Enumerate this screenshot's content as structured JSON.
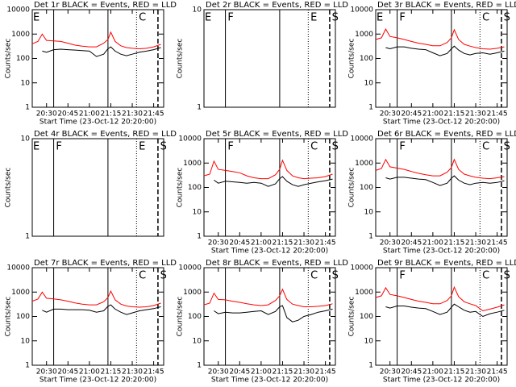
{
  "chart_data": [
    {
      "type": "line",
      "title": "Det 1r BLACK = Events, RED = LLD",
      "ylabel": "Counts/sec",
      "xlabel": "Start Time (23-Oct-12 20:20:00)",
      "xlim": [
        "20:20",
        "21:52"
      ],
      "xticks": [
        "20:30",
        "20:45",
        "21:00",
        "21:15",
        "21:30",
        "21:45"
      ],
      "ylim": [
        1,
        10000
      ],
      "yticks": [
        1,
        10,
        100,
        1000,
        10000
      ],
      "log_y": true,
      "x": [
        "20:20",
        "20:24",
        "20:27",
        "20:30",
        "20:35",
        "20:40",
        "20:45",
        "20:50",
        "20:55",
        "21:00",
        "21:05",
        "21:10",
        "21:13",
        "21:15",
        "21:18",
        "21:22",
        "21:26",
        "21:30",
        "21:35",
        "21:40",
        "21:45",
        "21:50"
      ],
      "series": [
        {
          "name": "RED = LLD",
          "color": "#ff0000",
          "values": [
            400,
            500,
            1000,
            550,
            520,
            500,
            420,
            350,
            320,
            300,
            300,
            420,
            600,
            1200,
            500,
            330,
            280,
            260,
            250,
            260,
            300,
            380
          ]
        },
        {
          "name": "BLACK = Events",
          "color": "#000000",
          "values": [
            null,
            null,
            200,
            180,
            230,
            240,
            230,
            220,
            210,
            200,
            120,
            150,
            250,
            300,
            200,
            150,
            130,
            150,
            180,
            200,
            230,
            280
          ]
        }
      ],
      "vlines": [
        {
          "x": "20:35",
          "style": "solid"
        },
        {
          "x": "21:13",
          "style": "solid"
        },
        {
          "x": "21:33",
          "style": "dotted"
        },
        {
          "x": "21:48",
          "style": "dashed"
        }
      ],
      "annotations": [
        {
          "text": "E",
          "x": "20:20"
        },
        {
          "text": "C",
          "x": "21:34"
        }
      ]
    },
    {
      "type": "line",
      "title": "Det 2r BLACK = Events, RED = LLD",
      "ylabel": "Counts/sec",
      "xlim": [
        "20:20",
        "21:52"
      ],
      "ylim": [
        1,
        10
      ],
      "yticks": [
        1,
        10
      ],
      "log_y": true,
      "vlines": [
        {
          "x": "20:35",
          "style": "solid"
        },
        {
          "x": "21:13",
          "style": "solid"
        },
        {
          "x": "21:33",
          "style": "dotted"
        },
        {
          "x": "21:48",
          "style": "dashed"
        }
      ],
      "annotations": [
        {
          "text": "E",
          "x": "20:20"
        },
        {
          "text": "F",
          "x": "20:36"
        },
        {
          "text": "E",
          "x": "21:34"
        },
        {
          "text": "S",
          "x": "21:49"
        }
      ]
    },
    {
      "type": "line",
      "title": "Det 3r BLACK = Events, RED = LLD",
      "ylabel": "Counts/sec",
      "xlabel": "Start Time (23-Oct-12 20:20:00)",
      "xlim": [
        "20:20",
        "21:52"
      ],
      "xticks": [
        "20:30",
        "20:45",
        "21:00",
        "21:15",
        "21:30",
        "21:45"
      ],
      "ylim": [
        1,
        10000
      ],
      "yticks": [
        1,
        10,
        100,
        1000,
        10000
      ],
      "log_y": true,
      "x": [
        "20:20",
        "20:24",
        "20:27",
        "20:30",
        "20:35",
        "20:40",
        "20:45",
        "20:50",
        "20:55",
        "21:00",
        "21:05",
        "21:10",
        "21:13",
        "21:15",
        "21:18",
        "21:22",
        "21:26",
        "21:30",
        "21:35",
        "21:40",
        "21:45",
        "21:50"
      ],
      "series": [
        {
          "name": "RED = LLD",
          "color": "#ff0000",
          "values": [
            600,
            700,
            1600,
            800,
            700,
            600,
            500,
            420,
            380,
            330,
            330,
            450,
            700,
            1500,
            600,
            380,
            320,
            280,
            250,
            240,
            260,
            300
          ]
        },
        {
          "name": "BLACK = Events",
          "color": "#000000",
          "values": [
            null,
            null,
            280,
            250,
            300,
            300,
            260,
            240,
            230,
            170,
            130,
            160,
            250,
            320,
            220,
            160,
            140,
            160,
            170,
            150,
            170,
            200
          ]
        }
      ],
      "vlines": [
        {
          "x": "20:35",
          "style": "solid"
        },
        {
          "x": "21:13",
          "style": "solid"
        },
        {
          "x": "21:33",
          "style": "dotted"
        },
        {
          "x": "21:48",
          "style": "dashed"
        }
      ],
      "annotations": [
        {
          "text": "E",
          "x": "20:20"
        },
        {
          "text": "F",
          "x": "20:36"
        },
        {
          "text": "C",
          "x": "21:34"
        },
        {
          "text": "S",
          "x": "21:49"
        }
      ]
    },
    {
      "type": "line",
      "title": "Det 4r BLACK = Events, RED = LLD",
      "ylabel": "Counts/sec",
      "xlim": [
        "20:20",
        "21:52"
      ],
      "ylim": [
        1,
        10
      ],
      "yticks": [
        1,
        10
      ],
      "log_y": true,
      "vlines": [
        {
          "x": "20:35",
          "style": "solid"
        },
        {
          "x": "21:13",
          "style": "solid"
        },
        {
          "x": "21:33",
          "style": "dotted"
        },
        {
          "x": "21:48",
          "style": "dashed"
        }
      ],
      "annotations": [
        {
          "text": "E",
          "x": "20:20"
        },
        {
          "text": "F",
          "x": "20:36"
        },
        {
          "text": "E",
          "x": "21:34"
        },
        {
          "text": "S",
          "x": "21:49"
        }
      ]
    },
    {
      "type": "line",
      "title": "Det 5r BLACK = Events, RED = LLD",
      "ylabel": "Counts/sec",
      "xlabel": "Start Time (23-Oct-12 20:20:00)",
      "xlim": [
        "20:20",
        "21:52"
      ],
      "xticks": [
        "20:30",
        "20:45",
        "21:00",
        "21:15",
        "21:30",
        "21:45"
      ],
      "ylim": [
        1,
        10000
      ],
      "yticks": [
        1,
        10,
        100,
        1000,
        10000
      ],
      "log_y": true,
      "x": [
        "20:20",
        "20:24",
        "20:27",
        "20:30",
        "20:35",
        "20:40",
        "20:45",
        "20:50",
        "20:55",
        "21:00",
        "21:05",
        "21:10",
        "21:13",
        "21:15",
        "21:18",
        "21:22",
        "21:26",
        "21:30",
        "21:35",
        "21:40",
        "21:45",
        "21:50"
      ],
      "series": [
        {
          "name": "RED = LLD",
          "color": "#ff0000",
          "values": [
            300,
            350,
            1200,
            550,
            500,
            450,
            400,
            300,
            250,
            230,
            230,
            330,
            550,
            1300,
            500,
            300,
            250,
            230,
            240,
            250,
            280,
            350
          ]
        },
        {
          "name": "BLACK = Events",
          "color": "#000000",
          "values": [
            null,
            null,
            200,
            150,
            180,
            170,
            160,
            150,
            160,
            150,
            110,
            140,
            230,
            280,
            180,
            130,
            110,
            130,
            150,
            170,
            190,
            220
          ]
        }
      ],
      "vlines": [
        {
          "x": "20:35",
          "style": "solid"
        },
        {
          "x": "21:13",
          "style": "solid"
        },
        {
          "x": "21:33",
          "style": "dotted"
        },
        {
          "x": "21:48",
          "style": "dashed"
        }
      ],
      "annotations": [
        {
          "text": "F",
          "x": "20:36"
        },
        {
          "text": "C",
          "x": "21:34"
        },
        {
          "text": "S",
          "x": "21:49"
        }
      ]
    },
    {
      "type": "line",
      "title": "Det 6r BLACK = Events, RED = LLD",
      "ylabel": "Counts/sec",
      "xlabel": "Start Time (23-Oct-12 20:20:00)",
      "xlim": [
        "20:20",
        "21:52"
      ],
      "xticks": [
        "20:30",
        "20:45",
        "21:00",
        "21:15",
        "21:30",
        "21:45"
      ],
      "ylim": [
        1,
        10000
      ],
      "yticks": [
        1,
        10,
        100,
        1000,
        10000
      ],
      "log_y": true,
      "x": [
        "20:20",
        "20:24",
        "20:27",
        "20:30",
        "20:35",
        "20:40",
        "20:45",
        "20:50",
        "20:55",
        "21:00",
        "21:05",
        "21:10",
        "21:13",
        "21:15",
        "21:18",
        "21:22",
        "21:26",
        "21:30",
        "21:35",
        "21:40",
        "21:45",
        "21:50"
      ],
      "series": [
        {
          "name": "RED = LLD",
          "color": "#ff0000",
          "values": [
            500,
            600,
            1400,
            700,
            620,
            550,
            450,
            380,
            330,
            300,
            300,
            420,
            650,
            1400,
            550,
            350,
            300,
            260,
            240,
            230,
            250,
            280
          ]
        },
        {
          "name": "BLACK = Events",
          "color": "#000000",
          "values": [
            null,
            null,
            250,
            220,
            260,
            260,
            240,
            220,
            210,
            160,
            120,
            150,
            240,
            300,
            200,
            150,
            130,
            150,
            160,
            150,
            160,
            190
          ]
        }
      ],
      "vlines": [
        {
          "x": "20:35",
          "style": "solid"
        },
        {
          "x": "21:13",
          "style": "solid"
        },
        {
          "x": "21:33",
          "style": "dotted"
        },
        {
          "x": "21:48",
          "style": "dashed"
        }
      ],
      "annotations": [
        {
          "text": "F",
          "x": "20:36"
        },
        {
          "text": "C",
          "x": "21:34"
        },
        {
          "text": "S",
          "x": "21:49"
        }
      ]
    },
    {
      "type": "line",
      "title": "Det 7r BLACK = Events, RED = LLD",
      "ylabel": "Counts/sec",
      "xlabel": "Start Time (23-Oct-12 20:20:00)",
      "xlim": [
        "20:20",
        "21:52"
      ],
      "xticks": [
        "20:30",
        "20:45",
        "21:00",
        "21:15",
        "21:30",
        "21:45"
      ],
      "ylim": [
        1,
        10000
      ],
      "yticks": [
        1,
        10,
        100,
        1000,
        10000
      ],
      "log_y": true,
      "x": [
        "20:20",
        "20:24",
        "20:27",
        "20:30",
        "20:35",
        "20:40",
        "20:45",
        "20:50",
        "20:55",
        "21:00",
        "21:05",
        "21:10",
        "21:13",
        "21:15",
        "21:18",
        "21:22",
        "21:26",
        "21:30",
        "21:35",
        "21:40",
        "21:45",
        "21:50"
      ],
      "series": [
        {
          "name": "RED = LLD",
          "color": "#ff0000",
          "values": [
            420,
            520,
            1000,
            560,
            520,
            480,
            420,
            360,
            320,
            300,
            300,
            400,
            600,
            1100,
            480,
            320,
            270,
            250,
            240,
            250,
            280,
            350
          ]
        },
        {
          "name": "BLACK = Events",
          "color": "#000000",
          "values": [
            null,
            null,
            180,
            150,
            200,
            200,
            190,
            190,
            190,
            180,
            150,
            170,
            260,
            300,
            200,
            150,
            120,
            140,
            170,
            190,
            210,
            250
          ]
        }
      ],
      "vlines": [
        {
          "x": "20:35",
          "style": "solid"
        },
        {
          "x": "21:13",
          "style": "solid"
        },
        {
          "x": "21:33",
          "style": "dotted"
        },
        {
          "x": "21:48",
          "style": "dashed"
        }
      ],
      "annotations": [
        {
          "text": "C",
          "x": "21:34"
        },
        {
          "text": "S",
          "x": "21:49"
        }
      ]
    },
    {
      "type": "line",
      "title": "Det 8r BLACK = Events, RED = LLD",
      "ylabel": "Counts/sec",
      "xlabel": "Start Time (23-Oct-12 20:20:00)",
      "xlim": [
        "20:20",
        "21:52"
      ],
      "xticks": [
        "20:30",
        "20:45",
        "21:00",
        "21:15",
        "21:30",
        "21:45"
      ],
      "ylim": [
        1,
        10000
      ],
      "yticks": [
        1,
        10,
        100,
        1000,
        10000
      ],
      "log_y": true,
      "x": [
        "20:20",
        "20:24",
        "20:27",
        "20:30",
        "20:35",
        "20:40",
        "20:45",
        "20:50",
        "20:55",
        "21:00",
        "21:05",
        "21:10",
        "21:13",
        "21:15",
        "21:18",
        "21:22",
        "21:26",
        "21:30",
        "21:35",
        "21:40",
        "21:45",
        "21:50"
      ],
      "series": [
        {
          "name": "RED = LLD",
          "color": "#ff0000",
          "values": [
            300,
            350,
            900,
            500,
            480,
            420,
            380,
            330,
            300,
            280,
            300,
            450,
            700,
            1300,
            500,
            320,
            280,
            250,
            250,
            260,
            280,
            330
          ]
        },
        {
          "name": "BLACK = Events",
          "color": "#000000",
          "values": [
            null,
            null,
            170,
            130,
            150,
            140,
            140,
            150,
            160,
            170,
            120,
            160,
            250,
            280,
            90,
            60,
            70,
            100,
            120,
            150,
            170,
            200
          ]
        }
      ],
      "vlines": [
        {
          "x": "20:35",
          "style": "solid"
        },
        {
          "x": "21:13",
          "style": "solid"
        },
        {
          "x": "21:33",
          "style": "dotted"
        },
        {
          "x": "21:48",
          "style": "dashed"
        }
      ],
      "annotations": [
        {
          "text": "C",
          "x": "21:34"
        },
        {
          "text": "S",
          "x": "21:49"
        }
      ]
    },
    {
      "type": "line",
      "title": "Det 9r BLACK = Events, RED = LLD",
      "ylabel": "Counts/sec",
      "xlabel": "Start Time (23-Oct-12 20:20:00)",
      "xlim": [
        "20:20",
        "21:52"
      ],
      "xticks": [
        "20:30",
        "20:45",
        "21:00",
        "21:15",
        "21:30",
        "21:45"
      ],
      "ylim": [
        1,
        10000
      ],
      "yticks": [
        1,
        10,
        100,
        1000,
        10000
      ],
      "log_y": true,
      "x": [
        "20:20",
        "20:24",
        "20:27",
        "20:30",
        "20:35",
        "20:40",
        "20:45",
        "20:50",
        "20:55",
        "21:00",
        "21:05",
        "21:10",
        "21:13",
        "21:15",
        "21:18",
        "21:22",
        "21:26",
        "21:30",
        "21:35",
        "21:40",
        "21:45",
        "21:50"
      ],
      "series": [
        {
          "name": "RED = LLD",
          "color": "#ff0000",
          "values": [
            600,
            700,
            1500,
            800,
            700,
            600,
            500,
            420,
            380,
            330,
            330,
            450,
            700,
            1600,
            650,
            400,
            330,
            280,
            170,
            200,
            240,
            300
          ]
        },
        {
          "name": "BLACK = Events",
          "color": "#000000",
          "values": [
            null,
            null,
            250,
            220,
            270,
            270,
            240,
            220,
            210,
            160,
            120,
            150,
            240,
            320,
            250,
            180,
            150,
            160,
            100,
            130,
            150,
            180
          ]
        }
      ],
      "vlines": [
        {
          "x": "20:35",
          "style": "solid"
        },
        {
          "x": "21:13",
          "style": "solid"
        },
        {
          "x": "21:33",
          "style": "dotted"
        },
        {
          "x": "21:48",
          "style": "dashed"
        }
      ],
      "annotations": [
        {
          "text": "F",
          "x": "20:36"
        },
        {
          "text": "C",
          "x": "21:34"
        },
        {
          "text": "S",
          "x": "21:49"
        }
      ]
    }
  ]
}
